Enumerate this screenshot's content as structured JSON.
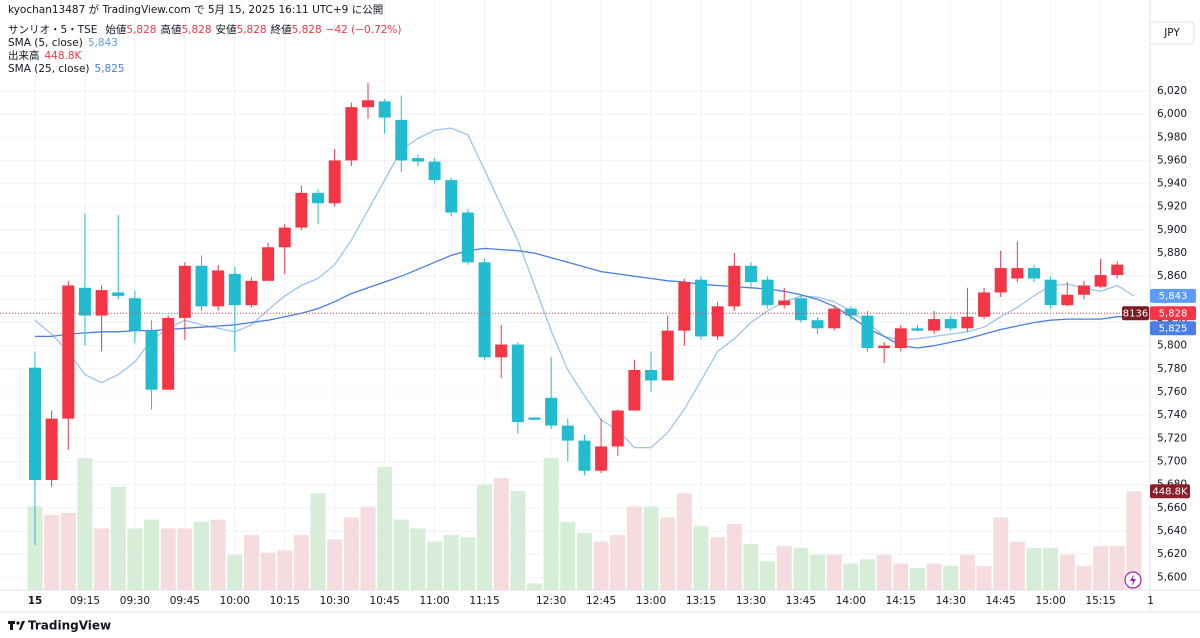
{
  "header": {
    "published": "kyochan13487 が TradingView.com で 5月 15, 2025 16:11 UTC+9 に公開",
    "currency": "JPY"
  },
  "footer": {
    "brand": "TradingView"
  },
  "chart_data": {
    "type": "candlestick",
    "symbol": "サンリオ・5・TSE",
    "ohlc_header": [
      {
        "label": "始値",
        "value": "5,828"
      },
      {
        "label": "高値",
        "value": "5,828"
      },
      {
        "label": "安値",
        "value": "5,828"
      },
      {
        "label": "終値",
        "value": "5,828"
      }
    ],
    "change": "−42 (−0.72%)",
    "countdown": "8136",
    "up_color": "#f23645",
    "down_color": "#22bcd0",
    "grid": true,
    "ylim": [
      5589,
      6083
    ],
    "yticks": [
      {
        "value": 6020,
        "label": "6,020"
      },
      {
        "value": 6000,
        "label": "6,000"
      },
      {
        "value": 5980,
        "label": "5,980"
      },
      {
        "value": 5960,
        "label": "5,960"
      },
      {
        "value": 5940,
        "label": "5,940"
      },
      {
        "value": 5920,
        "label": "5,920"
      },
      {
        "value": 5900,
        "label": "5,900"
      },
      {
        "value": 5880,
        "label": "5,880"
      },
      {
        "value": 5860,
        "label": "5,860"
      },
      {
        "value": 5840,
        "label": "5,840"
      },
      {
        "value": 5820,
        "label": "5,820"
      },
      {
        "value": 5800,
        "label": "5,800"
      },
      {
        "value": 5780,
        "label": "5,780"
      },
      {
        "value": 5760,
        "label": "5,760"
      },
      {
        "value": 5740,
        "label": "5,740"
      },
      {
        "value": 5720,
        "label": "5,720"
      },
      {
        "value": 5700,
        "label": "5,700"
      },
      {
        "value": 5680,
        "label": "5,680"
      },
      {
        "value": 5660,
        "label": "5,660"
      },
      {
        "value": 5640,
        "label": "5,640"
      },
      {
        "value": 5620,
        "label": "5,620"
      },
      {
        "value": 5600,
        "label": "5,600"
      }
    ],
    "categories": [
      "15",
      null,
      null,
      "09:15",
      null,
      null,
      "09:30",
      null,
      null,
      "09:45",
      null,
      null,
      "10:00",
      null,
      null,
      "10:15",
      null,
      null,
      "10:30",
      null,
      null,
      "10:45",
      null,
      null,
      "11:00",
      null,
      null,
      "11:15",
      null,
      null,
      null,
      "12:30",
      null,
      null,
      "12:45",
      null,
      null,
      "13:00",
      null,
      null,
      "13:15",
      null,
      null,
      "13:30",
      null,
      null,
      "13:45",
      null,
      null,
      "14:00",
      null,
      null,
      "14:15",
      null,
      null,
      "14:30",
      null,
      null,
      "14:45",
      null,
      null,
      "15:00",
      null,
      null,
      "15:15",
      null,
      null,
      "1"
    ],
    "open": [
      5781,
      5684,
      5737,
      5850,
      5826,
      5846,
      5841,
      5813,
      5762,
      5824,
      5869,
      5834,
      5862,
      5835,
      5856,
      5885,
      5902,
      5932,
      5923,
      5960,
      6006,
      6011,
      5995,
      5962,
      5959,
      5943,
      5915,
      5872,
      5790,
      5801,
      5738,
      5755,
      5731,
      5718,
      5692,
      5713,
      5744,
      5779,
      5770,
      5813,
      5857,
      5808,
      5834,
      5869,
      5857,
      5835,
      5841,
      5822,
      5815,
      5832,
      5826,
      5798,
      5798,
      5815,
      5813,
      5823,
      5815,
      5825,
      5846,
      5858,
      5867,
      5857,
      5835,
      5844,
      5851,
      5861,
      5828,
      null
    ],
    "high": [
      5795,
      5744,
      5856,
      5914,
      5852,
      5913,
      5848,
      5822,
      5826,
      5872,
      5878,
      5870,
      5868,
      5859,
      5889,
      5905,
      5938,
      5935,
      5970,
      6010,
      6027,
      6013,
      6016,
      5965,
      5962,
      5945,
      5918,
      5875,
      5818,
      5803,
      5738,
      5790,
      5737,
      5723,
      5737,
      5745,
      5788,
      5795,
      5826,
      5858,
      5860,
      5838,
      5880,
      5872,
      5860,
      5850,
      5843,
      5825,
      5835,
      5834,
      5830,
      5803,
      5818,
      5818,
      5830,
      5826,
      5850,
      5850,
      5882,
      5890,
      5870,
      5860,
      5855,
      5856,
      5875,
      5873,
      5828,
      null
    ],
    "low": [
      5628,
      5678,
      5710,
      5800,
      5795,
      5840,
      5802,
      5745,
      5762,
      5805,
      5830,
      5830,
      5795,
      5833,
      5856,
      5862,
      5900,
      5905,
      5920,
      5955,
      5996,
      5983,
      5950,
      5955,
      5940,
      5912,
      5870,
      5788,
      5772,
      5724,
      5736,
      5728,
      5700,
      5688,
      5690,
      5705,
      5744,
      5760,
      5770,
      5800,
      5805,
      5805,
      5830,
      5850,
      5832,
      5832,
      5820,
      5810,
      5813,
      5822,
      5795,
      5785,
      5795,
      5812,
      5810,
      5813,
      5812,
      5823,
      5842,
      5855,
      5855,
      5832,
      5834,
      5840,
      5850,
      5858,
      5828,
      null
    ],
    "close": [
      5684,
      5737,
      5852,
      5826,
      5848,
      5843,
      5813,
      5762,
      5824,
      5869,
      5834,
      5865,
      5835,
      5856,
      5885,
      5902,
      5932,
      5923,
      5960,
      6006,
      6012,
      5997,
      5960,
      5959,
      5943,
      5915,
      5872,
      5790,
      5801,
      5734,
      5736,
      5731,
      5718,
      5692,
      5713,
      5744,
      5779,
      5770,
      5813,
      5855,
      5808,
      5834,
      5869,
      5855,
      5835,
      5839,
      5822,
      5815,
      5832,
      5826,
      5798,
      5800,
      5815,
      5813,
      5823,
      5815,
      5825,
      5846,
      5867,
      5867,
      5858,
      5835,
      5844,
      5852,
      5861,
      5870,
      5828,
      null
    ],
    "volume": {
      "name": "出来高",
      "last_label": "448.8K",
      "up_color": "#f6dcde",
      "down_color": "#d6edd8",
      "tag_color": "#8a1f2a",
      "ylim": [
        0,
        2600
      ],
      "values": [
        380,
        340,
        350,
        600,
        280,
        470,
        280,
        320,
        280,
        280,
        310,
        320,
        160,
        250,
        170,
        180,
        250,
        440,
        230,
        330,
        380,
        560,
        320,
        280,
        220,
        250,
        240,
        480,
        510,
        450,
        30,
        600,
        310,
        260,
        220,
        250,
        380,
        380,
        330,
        440,
        290,
        240,
        300,
        210,
        130,
        200,
        190,
        160,
        160,
        120,
        140,
        160,
        120,
        100,
        120,
        110,
        160,
        110,
        330,
        220,
        190,
        190,
        160,
        110,
        200,
        200,
        448.8,
        null
      ]
    },
    "series": [
      {
        "name": "SMA (5, close)",
        "last_label": "5,843",
        "color": "#9ec3ee",
        "values": [
          5822,
          5810,
          5795,
          5775,
          5768,
          5775,
          5786,
          5805,
          5815,
          5822,
          5818,
          5815,
          5812,
          5818,
          5831,
          5843,
          5852,
          5858,
          5870,
          5891,
          5917,
          5943,
          5969,
          5979,
          5986,
          5988,
          5982,
          5952,
          5921,
          5891,
          5852,
          5813,
          5779,
          5757,
          5736,
          5727,
          5712,
          5712,
          5725,
          5745,
          5770,
          5795,
          5806,
          5820,
          5830,
          5838,
          5843,
          5842,
          5838,
          5830,
          5820,
          5808,
          5805,
          5806,
          5808,
          5810,
          5812,
          5816,
          5825,
          5833,
          5843,
          5852,
          5853,
          5850,
          5847,
          5852,
          5843,
          null
        ]
      },
      {
        "name": "SMA (25, close)",
        "last_label": "5,825",
        "color": "#4a7ee0",
        "values": [
          5808,
          5808,
          5810,
          5811,
          5812,
          5812,
          5813,
          5813,
          5814,
          5815,
          5816,
          5817,
          5818,
          5820,
          5822,
          5825,
          5828,
          5832,
          5838,
          5845,
          5850,
          5855,
          5860,
          5866,
          5872,
          5878,
          5882,
          5884,
          5883,
          5882,
          5880,
          5876,
          5872,
          5868,
          5864,
          5862,
          5860,
          5858,
          5856,
          5855,
          5853,
          5852,
          5851,
          5850,
          5849,
          5847,
          5844,
          5840,
          5834,
          5825,
          5815,
          5808,
          5800,
          5798,
          5800,
          5803,
          5806,
          5810,
          5814,
          5817,
          5820,
          5822,
          5823,
          5823,
          5823,
          5825,
          5825,
          null
        ]
      }
    ]
  }
}
